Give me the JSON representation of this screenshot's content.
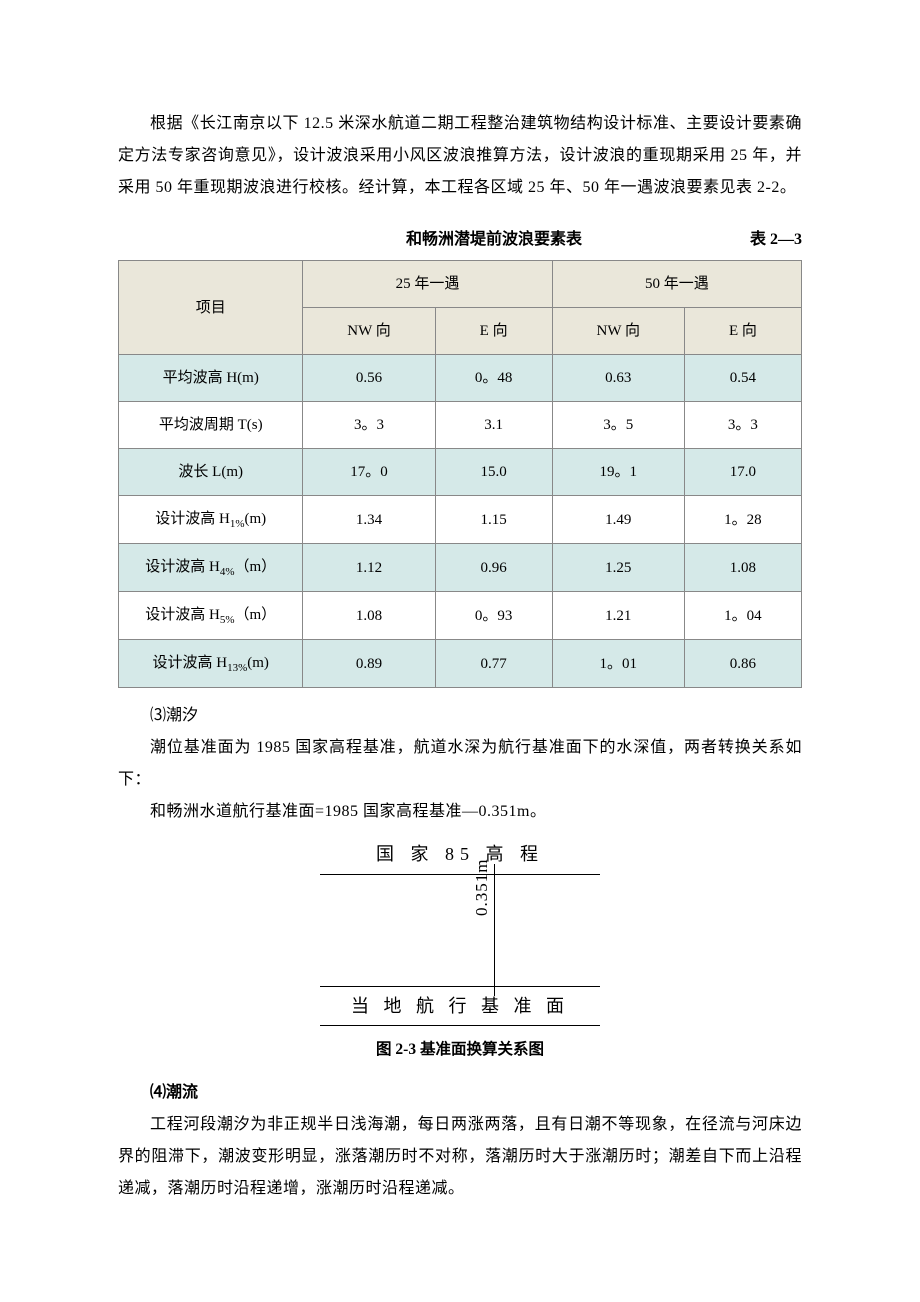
{
  "intro_paragraph": "根据《长江南京以下 12.5 米深水航道二期工程整治建筑物结构设计标准、主要设计要素确定方法专家咨询意见》，设计波浪采用小风区波浪推算方法，设计波浪的重现期采用 25 年，并采用 50 年重现期波浪进行校核。经计算，本工程各区域 25 年、50 年一遇波浪要素见表 2-2。",
  "table": {
    "title": "和畅洲潜堤前波浪要素表",
    "number": "表 2—3",
    "col_group_1": "25 年一遇",
    "col_group_2": "50 年一遇",
    "sub_nw": "NW 向",
    "sub_e": "E 向",
    "row_header_label": "项目",
    "rows": [
      {
        "label_html": "平均波高 H(m)",
        "v1": "0.56",
        "v2": "0。48",
        "v3": "0.63",
        "v4": "0.54"
      },
      {
        "label_html": "平均波周期 T(s)",
        "v1": "3。3",
        "v2": "3.1",
        "v3": "3。5",
        "v4": "3。3"
      },
      {
        "label_html": "波长 L(m)",
        "v1": "17。0",
        "v2": "15.0",
        "v3": "19。1",
        "v4": "17.0"
      },
      {
        "label_html": "设计波高 H<sub>1%</sub>(m)",
        "v1": "1.34",
        "v2": "1.15",
        "v3": "1.49",
        "v4": "1。28"
      },
      {
        "label_html": "设计波高 H<sub>4%</sub>（m）",
        "v1": "1.12",
        "v2": "0.96",
        "v3": "1.25",
        "v4": "1.08"
      },
      {
        "label_html": "设计波高 H<sub>5%</sub>（m）",
        "v1": "1.08",
        "v2": "0。93",
        "v3": "1.21",
        "v4": "1。04"
      },
      {
        "label_html": "设计波高 H<sub>13%</sub>(m)",
        "v1": "0.89",
        "v2": "0.77",
        "v3": "1。01",
        "v4": "0.86"
      }
    ],
    "header_bg": "#eae7da",
    "row_odd_bg": "#d5e9e8",
    "row_even_bg": "#ffffff",
    "border_color": "#888888"
  },
  "section3": {
    "num": "⑶潮汐",
    "p1": "潮位基准面为 1985 国家高程基准，航道水深为航行基准面下的水深值，两者转换关系如下：",
    "p2": "和畅洲水道航行基准面=1985 国家高程基准—0.351m。"
  },
  "diagram": {
    "top_label": "国 家 85 高 程",
    "bottom_label": "当 地 航 行 基 准 面",
    "value": "0.351m",
    "caption": "图 2-3 基准面换算关系图"
  },
  "section4": {
    "title": "⑷潮流",
    "p1": "工程河段潮汐为非正规半日浅海潮，每日两涨两落，且有日潮不等现象，在径流与河床边界的阻滞下，潮波变形明显，涨落潮历时不对称，落潮历时大于涨潮历时；潮差自下而上沿程递减，落潮历时沿程递增，涨潮历时沿程递减。"
  }
}
